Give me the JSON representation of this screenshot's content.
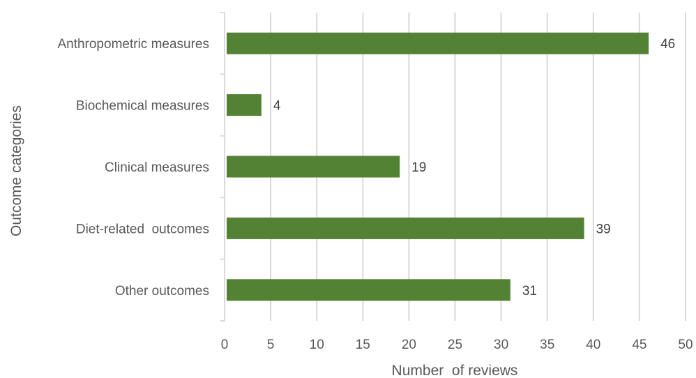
{
  "chart_data": {
    "type": "bar",
    "orientation": "horizontal",
    "categories": [
      "Anthropometric measures",
      "Biochemical measures",
      "Clinical measures",
      "Diet-related  outcomes",
      "Other outcomes"
    ],
    "values": [
      46,
      4,
      19,
      39,
      31
    ],
    "xlabel": "Number  of reviews",
    "ylabel": "Outcome categories",
    "xlim": [
      0,
      50
    ],
    "xticks": [
      0,
      5,
      10,
      15,
      20,
      25,
      30,
      35,
      40,
      45,
      50
    ],
    "grid": "vertical",
    "legend": "none",
    "bar_color": "#548235",
    "grid_color": "#d9d9d9"
  }
}
